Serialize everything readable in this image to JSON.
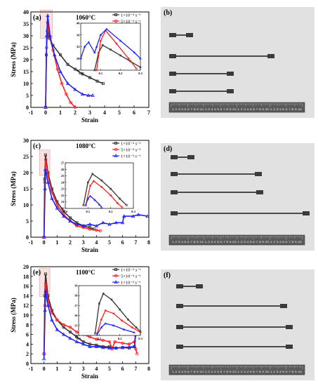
{
  "chart_data": [
    {
      "panel": "(a)",
      "type": "line",
      "temperature": "1060°C",
      "xlabel": "Strain",
      "ylabel": "Stress (MPa)",
      "xlim": [
        -1,
        7
      ],
      "ylim": [
        0,
        40
      ],
      "xticks": [
        "-1",
        "0",
        "1",
        "2",
        "3",
        "4",
        "5",
        "6",
        "7"
      ],
      "yticks": [
        "0",
        "5",
        "10",
        "15",
        "20",
        "25",
        "30",
        "35",
        "40"
      ],
      "series": [
        {
          "name": "1×10⁻⁴ s⁻¹",
          "color": "#333333",
          "marker": "square",
          "points": [
            [
              0,
              0
            ],
            [
              0.05,
              22
            ],
            [
              0.12,
              32
            ],
            [
              0.25,
              29
            ],
            [
              0.5,
              26
            ],
            [
              1,
              22
            ],
            [
              1.5,
              18
            ],
            [
              2,
              16
            ],
            [
              2.5,
              14
            ],
            [
              3,
              12.5
            ],
            [
              3.5,
              11
            ],
            [
              3.9,
              10
            ]
          ]
        },
        {
          "name": "5×10⁻⁴ s⁻¹",
          "color": "#ff2020",
          "marker": "circle",
          "points": [
            [
              0,
              0
            ],
            [
              0.06,
              25
            ],
            [
              0.13,
              35.5
            ],
            [
              0.25,
              30
            ],
            [
              0.5,
              24
            ],
            [
              0.8,
              16
            ],
            [
              1.1,
              10
            ],
            [
              1.4,
              5.5
            ],
            [
              1.7,
              2
            ],
            [
              2,
              0
            ]
          ]
        },
        {
          "name": "1×10⁻³ s⁻¹",
          "color": "#2020ff",
          "marker": "triangle",
          "points": [
            [
              0,
              0
            ],
            [
              0.07,
              30
            ],
            [
              0.14,
              38.5
            ],
            [
              0.3,
              30
            ],
            [
              0.6,
              22
            ],
            [
              1,
              15
            ],
            [
              1.5,
              10
            ],
            [
              2,
              7.5
            ],
            [
              2.5,
              5.5
            ],
            [
              2.9,
              5
            ],
            [
              3.2,
              5
            ]
          ]
        }
      ],
      "inset": {
        "xlim": [
          0,
          0.3
        ],
        "ylim": [
          24,
          40
        ],
        "xticks": [
          "0.0",
          "0.1",
          "0.2",
          "0.3"
        ],
        "yticks": [
          "24",
          "28",
          "32",
          "36",
          "40"
        ],
        "series": [
          {
            "name": "1×10⁻⁴ s⁻¹",
            "points": [
              [
                0.07,
                24
              ],
              [
                0.09,
                30
              ],
              [
                0.11,
                32.5
              ],
              [
                0.15,
                31
              ],
              [
                0.2,
                29
              ],
              [
                0.25,
                27
              ],
              [
                0.3,
                25
              ]
            ]
          },
          {
            "name": "5×10⁻⁴ s⁻¹",
            "points": [
              [
                0.08,
                24
              ],
              [
                0.1,
                34
              ],
              [
                0.125,
                37.5
              ],
              [
                0.18,
                33
              ],
              [
                0.24,
                28
              ],
              [
                0.28,
                24.5
              ]
            ]
          },
          {
            "name": "1×10⁻³ s⁻¹",
            "points": [
              [
                0.0,
                28
              ],
              [
                0.02,
                32
              ],
              [
                0.04,
                33.5
              ],
              [
                0.07,
                30
              ],
              [
                0.08,
                32
              ],
              [
                0.1,
                36
              ],
              [
                0.13,
                38
              ],
              [
                0.2,
                34
              ],
              [
                0.27,
                30
              ],
              [
                0.3,
                28
              ]
            ]
          }
        ]
      }
    },
    {
      "panel": "(c)",
      "type": "line",
      "temperature": "1080°C",
      "xlabel": "Strain",
      "ylabel": "Stress (MPa)",
      "xlim": [
        -1,
        8
      ],
      "ylim": [
        0,
        30
      ],
      "xticks": [
        "-1",
        "0",
        "1",
        "2",
        "3",
        "4",
        "5",
        "6",
        "7",
        "8"
      ],
      "yticks": [
        "0",
        "5",
        "10",
        "15",
        "20",
        "25",
        "30"
      ],
      "series": [
        {
          "name": "1×10⁻⁴ s⁻¹",
          "color": "#333333",
          "marker": "square",
          "points": [
            [
              0,
              0
            ],
            [
              0.05,
              18
            ],
            [
              0.12,
              25.5
            ],
            [
              0.3,
              20
            ],
            [
              0.6,
              15
            ],
            [
              1,
              11
            ],
            [
              1.5,
              8
            ],
            [
              2,
              6
            ],
            [
              2.5,
              4.5
            ],
            [
              3,
              3.5
            ],
            [
              3.5,
              3
            ],
            [
              3.8,
              2.5
            ]
          ]
        },
        {
          "name": "5×10⁻⁴ s⁻¹",
          "color": "#ff2020",
          "marker": "circle",
          "points": [
            [
              0,
              0
            ],
            [
              0.06,
              17
            ],
            [
              0.13,
              24
            ],
            [
              0.3,
              19
            ],
            [
              0.6,
              14
            ],
            [
              1,
              10
            ],
            [
              1.5,
              7
            ],
            [
              2,
              5
            ],
            [
              2.5,
              3.5
            ],
            [
              3,
              3
            ],
            [
              3.5,
              2.5
            ],
            [
              4,
              2.2
            ],
            [
              4.3,
              2
            ]
          ]
        },
        {
          "name": "1×10⁻³ s⁻¹",
          "color": "#2020ff",
          "marker": "triangle",
          "points": [
            [
              0,
              0
            ],
            [
              0.08,
              15
            ],
            [
              0.1,
              21
            ],
            [
              0.3,
              17
            ],
            [
              0.6,
              12
            ],
            [
              1,
              9
            ],
            [
              1.5,
              6.5
            ],
            [
              2,
              5
            ],
            [
              2.5,
              4
            ],
            [
              3,
              3.5
            ],
            [
              3.5,
              4
            ],
            [
              4,
              3.5
            ],
            [
              4.5,
              4.5
            ],
            [
              5,
              4
            ],
            [
              5.5,
              4.5
            ],
            [
              6,
              4.5
            ],
            [
              6.1,
              6.5
            ],
            [
              6.8,
              6.5
            ],
            [
              7.2,
              7
            ],
            [
              7.9,
              6.5
            ]
          ]
        }
      ],
      "inset": {
        "xlim": [
          0,
          0.3
        ],
        "ylim": [
          20,
          27
        ],
        "xticks": [
          "0.0",
          "0.1",
          "0.2",
          "0.3"
        ],
        "yticks": [
          "20",
          "21",
          "22",
          "23",
          "24",
          "25",
          "26",
          "27"
        ],
        "series": [
          {
            "name": "1×10⁻⁴ s⁻¹",
            "points": [
              [
                0.08,
                20.5
              ],
              [
                0.1,
                24
              ],
              [
                0.12,
                25.3
              ],
              [
                0.16,
                24.3
              ],
              [
                0.2,
                23
              ],
              [
                0.24,
                21.5
              ],
              [
                0.27,
                20.5
              ]
            ]
          },
          {
            "name": "5×10⁻⁴ s⁻¹",
            "points": [
              [
                0.09,
                20.5
              ],
              [
                0.11,
                23.5
              ],
              [
                0.125,
                24.2
              ],
              [
                0.16,
                23.3
              ],
              [
                0.2,
                22
              ],
              [
                0.23,
                20.8
              ],
              [
                0.25,
                20.2
              ]
            ]
          },
          {
            "name": "1×10⁻³ s⁻¹",
            "points": [
              [
                0.09,
                20.5
              ],
              [
                0.1,
                21.5
              ],
              [
                0.11,
                21.9
              ],
              [
                0.13,
                21.3
              ],
              [
                0.15,
                20.6
              ],
              [
                0.16,
                20.2
              ]
            ]
          }
        ]
      }
    },
    {
      "panel": "(e)",
      "type": "line",
      "temperature": "1100°C",
      "xlabel": "Strain",
      "ylabel": "Stress (MPa)",
      "xlim": [
        -1,
        8
      ],
      "ylim": [
        0,
        20
      ],
      "xticks": [
        "-1",
        "0",
        "1",
        "2",
        "3",
        "4",
        "5",
        "6",
        "7",
        "8"
      ],
      "yticks": [
        "0",
        "2",
        "4",
        "6",
        "8",
        "10",
        "12",
        "14",
        "16",
        "18",
        "20"
      ],
      "series": [
        {
          "name": "1×10⁻⁴ s⁻¹",
          "color": "#333333",
          "marker": "square",
          "points": [
            [
              0,
              2
            ],
            [
              0.06,
              14
            ],
            [
              0.12,
              18.5
            ],
            [
              0.3,
              14
            ],
            [
              0.6,
              11
            ],
            [
              1,
              9
            ],
            [
              1.5,
              7.5
            ],
            [
              2,
              6.5
            ],
            [
              2.5,
              5.5
            ],
            [
              3,
              4.5
            ],
            [
              3.5,
              4
            ],
            [
              4,
              3.8
            ],
            [
              4.5,
              3.5
            ],
            [
              5,
              3.5
            ],
            [
              5.5,
              3.2
            ],
            [
              6,
              3.3
            ],
            [
              6.5,
              3.2
            ],
            [
              6.9,
              3.5
            ],
            [
              7,
              6
            ]
          ]
        },
        {
          "name": "5×10⁻⁴ s⁻¹",
          "color": "#ff2020",
          "marker": "circle",
          "points": [
            [
              0,
              2
            ],
            [
              0.07,
              12
            ],
            [
              0.13,
              16.5
            ],
            [
              0.3,
              13
            ],
            [
              0.6,
              10.5
            ],
            [
              1,
              9
            ],
            [
              1.5,
              8
            ],
            [
              2,
              7.5
            ],
            [
              2.5,
              6.5
            ],
            [
              3,
              6
            ],
            [
              3.5,
              5.5
            ],
            [
              4,
              5
            ],
            [
              4.5,
              4.8
            ],
            [
              5,
              4.5
            ],
            [
              5.2,
              3
            ],
            [
              5.4,
              4.5
            ],
            [
              6,
              4.2
            ],
            [
              6.5,
              4
            ],
            [
              6.9,
              4.5
            ],
            [
              7,
              3
            ],
            [
              7.1,
              2
            ]
          ]
        },
        {
          "name": "1×10⁻³ s⁻¹",
          "color": "#2020ff",
          "marker": "triangle",
          "points": [
            [
              0,
              1
            ],
            [
              0.08,
              11
            ],
            [
              0.12,
              15
            ],
            [
              0.3,
              12
            ],
            [
              0.6,
              9
            ],
            [
              1,
              7
            ],
            [
              1.5,
              6
            ],
            [
              2,
              5.2
            ],
            [
              2.5,
              4.5
            ],
            [
              3,
              4
            ],
            [
              3.5,
              3.5
            ],
            [
              4,
              3.5
            ],
            [
              4.5,
              3.3
            ],
            [
              5,
              3.2
            ],
            [
              5.5,
              3.2
            ],
            [
              6,
              3.3
            ],
            [
              6.5,
              3.4
            ],
            [
              6.9,
              3.5
            ],
            [
              7,
              7
            ]
          ]
        }
      ],
      "inset": {
        "xlim": [
          0,
          0.3
        ],
        "ylim": [
          14,
          19
        ],
        "xticks": [
          "0.0",
          "0.1",
          "0.2",
          "0.3"
        ],
        "yticks": [
          "14",
          "15",
          "16",
          "17",
          "18",
          "19"
        ],
        "series": [
          {
            "name": "1×10⁻⁴ s⁻¹",
            "points": [
              [
                0.08,
                14.2
              ],
              [
                0.1,
                17.2
              ],
              [
                0.12,
                18.2
              ],
              [
                0.16,
                17.6
              ],
              [
                0.2,
                16.6
              ],
              [
                0.24,
                15.6
              ],
              [
                0.28,
                14.8
              ],
              [
                0.3,
                14.4
              ]
            ]
          },
          {
            "name": "5×10⁻⁴ s⁻¹",
            "points": [
              [
                0.09,
                14.2
              ],
              [
                0.11,
                15.6
              ],
              [
                0.13,
                16.5
              ],
              [
                0.17,
                16.2
              ],
              [
                0.21,
                15.5
              ],
              [
                0.26,
                14.8
              ],
              [
                0.3,
                14.3
              ]
            ]
          },
          {
            "name": "1×10⁻³ s⁻¹",
            "points": [
              [
                0.09,
                14.1
              ],
              [
                0.11,
                14.8
              ],
              [
                0.13,
                15.2
              ],
              [
                0.17,
                15.0
              ],
              [
                0.22,
                14.6
              ],
              [
                0.27,
                14.3
              ]
            ]
          }
        ]
      }
    }
  ],
  "photos": [
    {
      "panel": "(b)",
      "ruler_numbers": "1 2 3 4 5 6 7 8 9 10 1 2 3 4 5 6 7 8 9 20 1 2 3 4 5 6 7 8 9 30 1 2 3 4 5 6 7 8 9 40"
    },
    {
      "panel": "(d)",
      "ruler_numbers": "1 2 3 4 5 6 7 8 9 10 1 2 3 4 5 6 7 8 9 20 1 2 3 4 5 6 7 8 9 30 1 2 3 4 5 6 7 8 9 40"
    },
    {
      "panel": "(f)",
      "ruler_numbers": "1 2 3 4 5 6 7 8 9 10 1 2 3 4 5 6 7 8 9 20 1 2 3 4 5 6 7 8 9 30 1 2 3 4 5 6 7 8 9 40"
    }
  ]
}
